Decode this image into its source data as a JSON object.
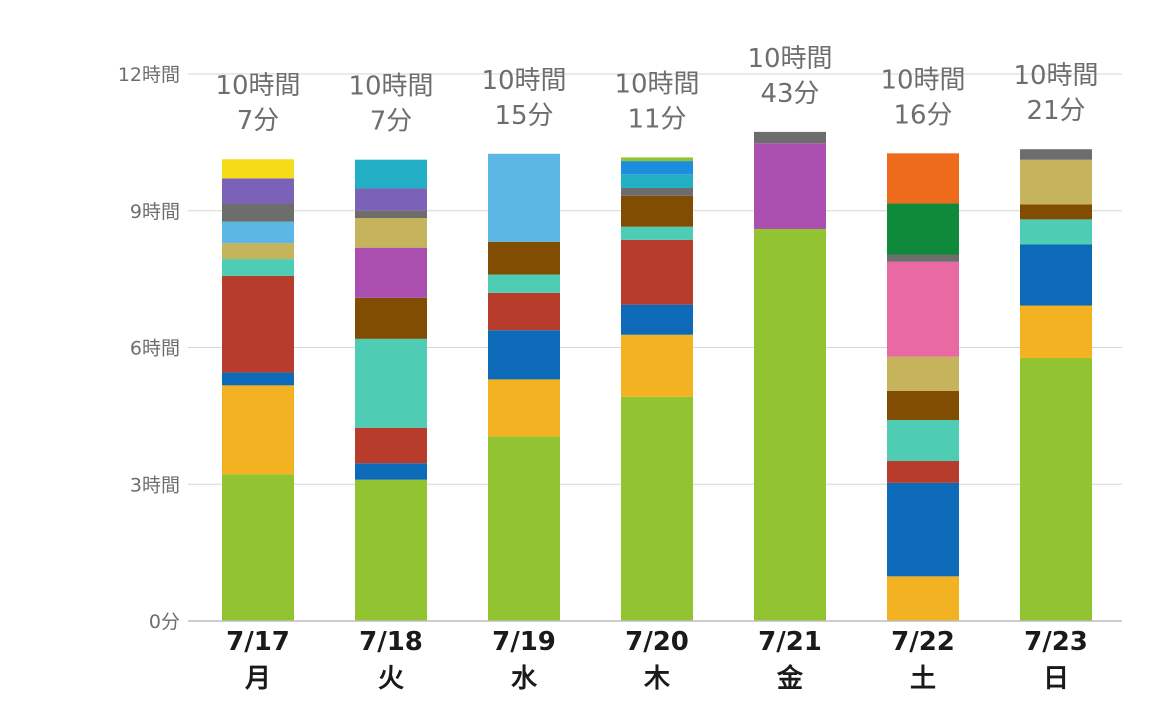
{
  "chart_data": {
    "type": "bar",
    "stacked": true,
    "unit": "hours",
    "y_ticks": [
      {
        "value": 0,
        "label": "0分"
      },
      {
        "value": 3,
        "label": "3時間"
      },
      {
        "value": 6,
        "label": "6時間"
      },
      {
        "value": 9,
        "label": "9時間"
      },
      {
        "value": 12,
        "label": "12時間"
      }
    ],
    "ylim": [
      0,
      12
    ],
    "grid": true,
    "categories": [
      {
        "date": "7/17",
        "day": "月",
        "total": [
          "10時間",
          "7分"
        ]
      },
      {
        "date": "7/18",
        "day": "火",
        "total": [
          "10時間",
          "7分"
        ]
      },
      {
        "date": "7/19",
        "day": "水",
        "total": [
          "10時間",
          "15分"
        ]
      },
      {
        "date": "7/20",
        "day": "木",
        "total": [
          "10時間",
          "11分"
        ]
      },
      {
        "date": "7/21",
        "day": "金",
        "total": [
          "10時間",
          "43分"
        ]
      },
      {
        "date": "7/22",
        "day": "土",
        "total": [
          "10時間",
          "16分"
        ]
      },
      {
        "date": "7/23",
        "day": "日",
        "total": [
          "10時間",
          "21分"
        ]
      }
    ],
    "stacks": [
      [
        {
          "color": "#92c330",
          "value": 3.22
        },
        {
          "color": "#f3b221",
          "value": 1.95
        },
        {
          "color": "#0c6ab8",
          "value": 0.28
        },
        {
          "color": "#b73c2c",
          "value": 2.12
        },
        {
          "color": "#4ecdb4",
          "value": 0.37
        },
        {
          "color": "#c6b45c",
          "value": 0.35
        },
        {
          "color": "#5db7e4",
          "value": 0.47
        },
        {
          "color": "#6d6d6d",
          "value": 0.4
        },
        {
          "color": "#7b61b7",
          "value": 0.55
        },
        {
          "color": "#f6dc18",
          "value": 0.42
        }
      ],
      [
        {
          "color": "#92c330",
          "value": 3.1
        },
        {
          "color": "#0c6ab8",
          "value": 0.36
        },
        {
          "color": "#b73c2c",
          "value": 0.78
        },
        {
          "color": "#4ecdb4",
          "value": 1.95
        },
        {
          "color": "#814d02",
          "value": 0.9
        },
        {
          "color": "#aa4fb0",
          "value": 1.1
        },
        {
          "color": "#c6b45c",
          "value": 0.65
        },
        {
          "color": "#6d6d6d",
          "value": 0.17
        },
        {
          "color": "#7b61b7",
          "value": 0.48
        },
        {
          "color": "#22afc6",
          "value": 0.63
        }
      ],
      [
        {
          "color": "#92c330",
          "value": 4.05
        },
        {
          "color": "#f3b221",
          "value": 1.25
        },
        {
          "color": "#0c6ab8",
          "value": 1.08
        },
        {
          "color": "#b73c2c",
          "value": 0.82
        },
        {
          "color": "#4ecdb4",
          "value": 0.4
        },
        {
          "color": "#814d02",
          "value": 0.72
        },
        {
          "color": "#5db7e4",
          "value": 1.93
        }
      ],
      [
        {
          "color": "#92c330",
          "value": 4.92
        },
        {
          "color": "#f3b221",
          "value": 1.36
        },
        {
          "color": "#0c6ab8",
          "value": 0.66
        },
        {
          "color": "#b73c2c",
          "value": 1.42
        },
        {
          "color": "#4ecdb4",
          "value": 0.29
        },
        {
          "color": "#814d02",
          "value": 0.68
        },
        {
          "color": "#6d6d6d",
          "value": 0.17
        },
        {
          "color": "#22afc6",
          "value": 0.3
        },
        {
          "color": "#1d8de0",
          "value": 0.29
        },
        {
          "color": "#92c330",
          "value": 0.08
        }
      ],
      [
        {
          "color": "#92c330",
          "value": 8.6
        },
        {
          "color": "#aa4fb0",
          "value": 1.88
        },
        {
          "color": "#6d6d6d",
          "value": 0.25
        }
      ],
      [
        {
          "color": "#f3b221",
          "value": 0.98
        },
        {
          "color": "#0c6ab8",
          "value": 2.05
        },
        {
          "color": "#b73c2c",
          "value": 0.48
        },
        {
          "color": "#4ecdb4",
          "value": 0.9
        },
        {
          "color": "#814d02",
          "value": 0.64
        },
        {
          "color": "#c6b45c",
          "value": 0.75
        },
        {
          "color": "#e96aa3",
          "value": 2.08
        },
        {
          "color": "#6d6d6d",
          "value": 0.16
        },
        {
          "color": "#0f8a3b",
          "value": 1.12
        },
        {
          "color": "#ef6b1c",
          "value": 1.1
        }
      ],
      [
        {
          "color": "#92c330",
          "value": 5.77
        },
        {
          "color": "#f3b221",
          "value": 1.15
        },
        {
          "color": "#0c6ab8",
          "value": 1.34
        },
        {
          "color": "#4ecdb4",
          "value": 0.55
        },
        {
          "color": "#814d02",
          "value": 0.33
        },
        {
          "color": "#c6b45c",
          "value": 0.98
        },
        {
          "color": "#6d6d6d",
          "value": 0.23
        }
      ]
    ]
  }
}
